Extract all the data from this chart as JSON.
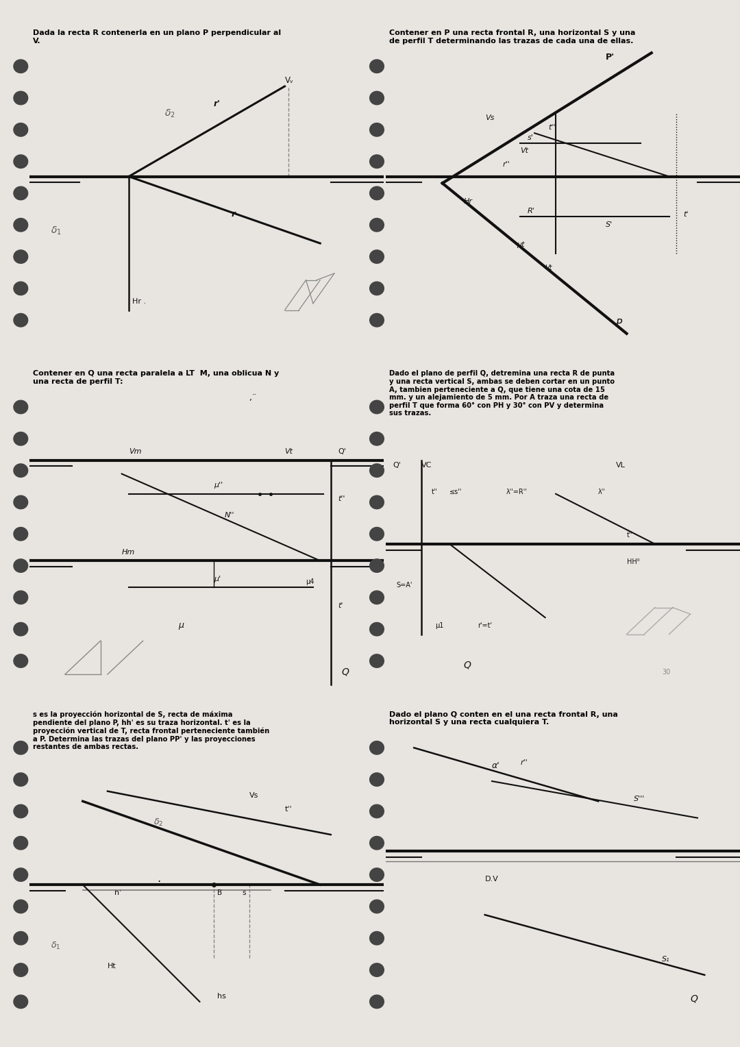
{
  "bg_color": "#e8e5e0",
  "panel_bg": "#ffffff",
  "lc": "#111111",
  "tlc": "#111111",
  "panel_titles": [
    "Dada la recta R contenerla en un plano P perpendicular al\nV.",
    "Contener en P una recta frontal R, una horizontal S y una\nde perfil T determinando las trazas de cada una de ellas.",
    "Contener en Q una recta paralela a LT  M, una oblicua N y\nuna recta de perfil T:",
    "Dado el plano de perfil Q, detremina una recta R de punta\ny una recta vertical S, ambas se deben cortar en un punto\nA, tambien perteneciente a Q, que tiene una cota de 15\nmm. y un alejamiento de 5 mm. Por A traza una recta de\nperfil T que forma 60° con PH y 30° con PV y determina\nsus trazas.",
    "s es la proyección horizontal de S, recta de máxima\npendiente del plano P, hh' es su traza horizontal. t' es la\nproyección vertical de T, recta frontal perteneciente también\na P. Determina las trazas del plano PP' y las proyecciones\nrestantes de ambas rectas.",
    "Dado el plano Q conten en el una recta frontal R, una\nhorizontal S y una recta cualquiera T."
  ]
}
